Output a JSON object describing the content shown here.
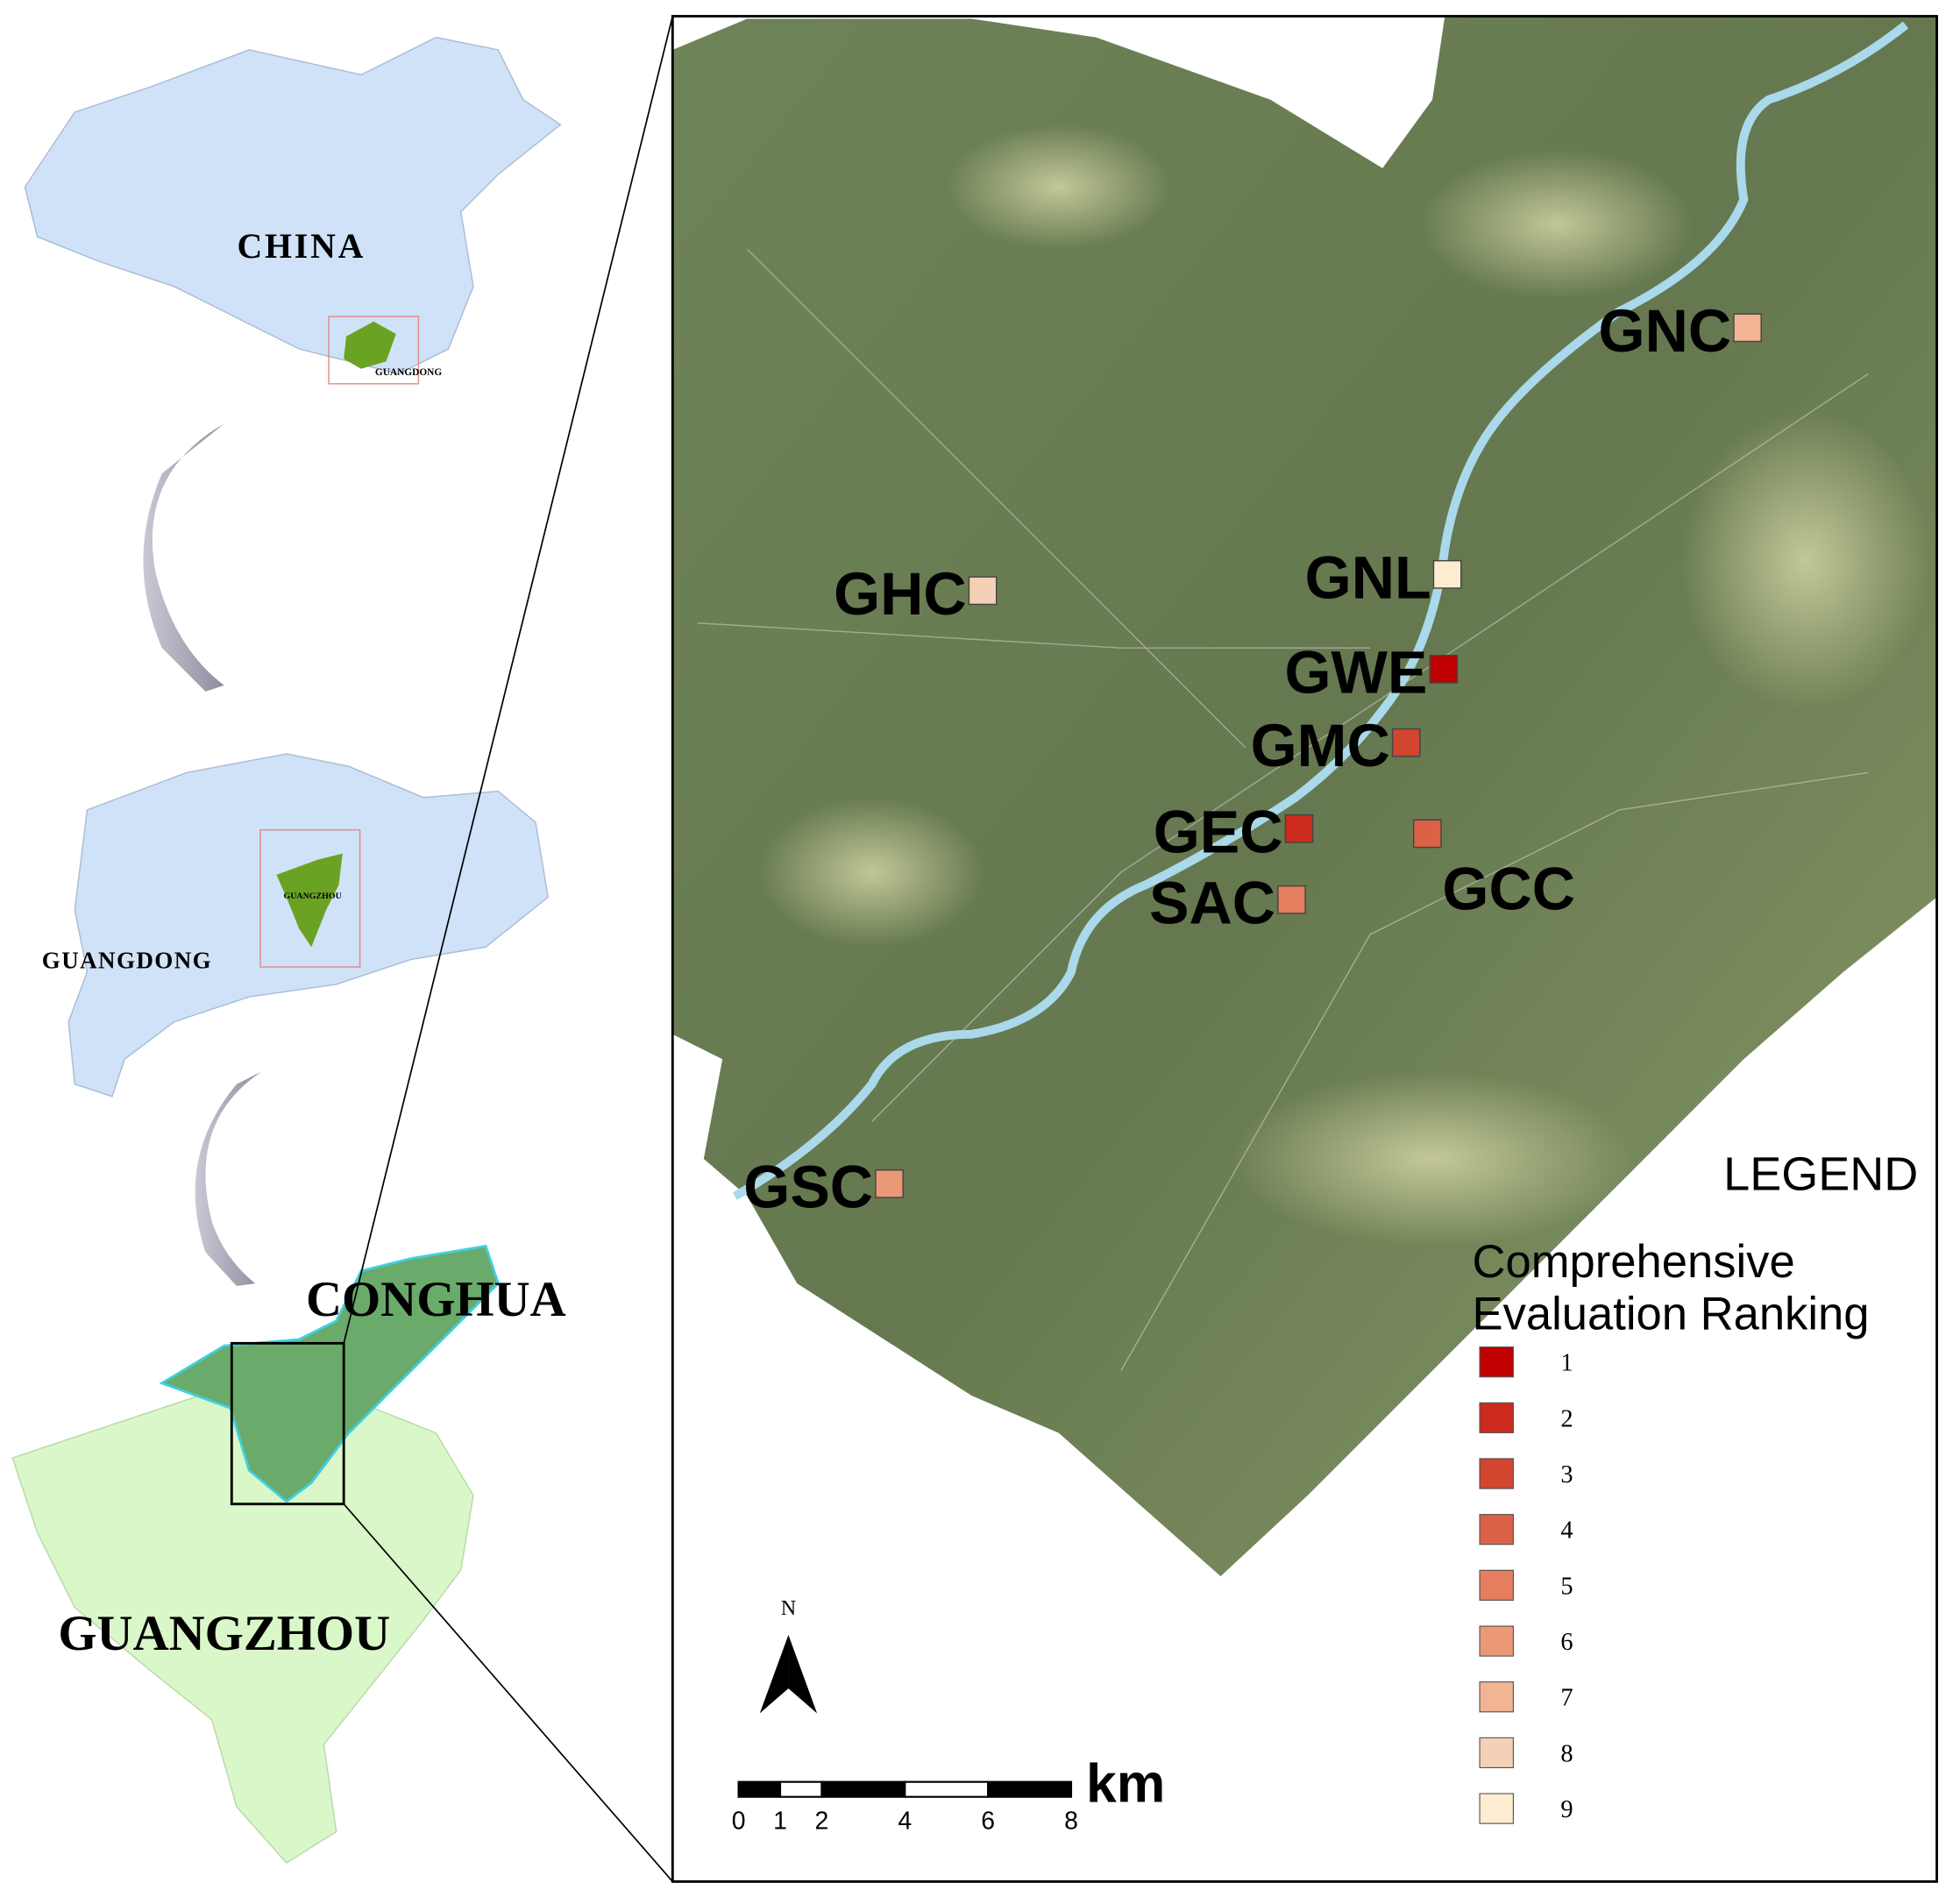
{
  "inset_labels": {
    "china": "CHINA",
    "guangdong_small": "GUANGDONG",
    "guangdong": "GUANGDONG",
    "guangzhou_small": "GUANGZHOU",
    "conghua": "CONGHUA",
    "guangzhou": "GUANGZHOU"
  },
  "sites": [
    {
      "name": "GNC",
      "rank": 7
    },
    {
      "name": "GHC",
      "rank": 8
    },
    {
      "name": "GNL",
      "rank": 9
    },
    {
      "name": "GWE",
      "rank": 1
    },
    {
      "name": "GMC",
      "rank": 3
    },
    {
      "name": "GEC",
      "rank": 2
    },
    {
      "name": "GCC",
      "rank": 4
    },
    {
      "name": "SAC",
      "rank": 5
    },
    {
      "name": "GSC",
      "rank": 6
    }
  ],
  "legend": {
    "title": "LEGEND",
    "subtitle_lines": [
      "Comprehensive",
      "Evaluation Ranking"
    ],
    "ranks": [
      {
        "value": 1,
        "color": "#c00000"
      },
      {
        "value": 2,
        "color": "#cc2a1e"
      },
      {
        "value": 3,
        "color": "#d2452f"
      },
      {
        "value": 4,
        "color": "#dc6247"
      },
      {
        "value": 5,
        "color": "#e57e5e"
      },
      {
        "value": 6,
        "color": "#eb9877"
      },
      {
        "value": 7,
        "color": "#f2b494"
      },
      {
        "value": 8,
        "color": "#f3d0b6"
      },
      {
        "value": 9,
        "color": "#fdeccf"
      }
    ]
  },
  "north": "N",
  "scale_bar": {
    "ticks": [
      0,
      1,
      2,
      4,
      6,
      8
    ],
    "unit": "km"
  }
}
